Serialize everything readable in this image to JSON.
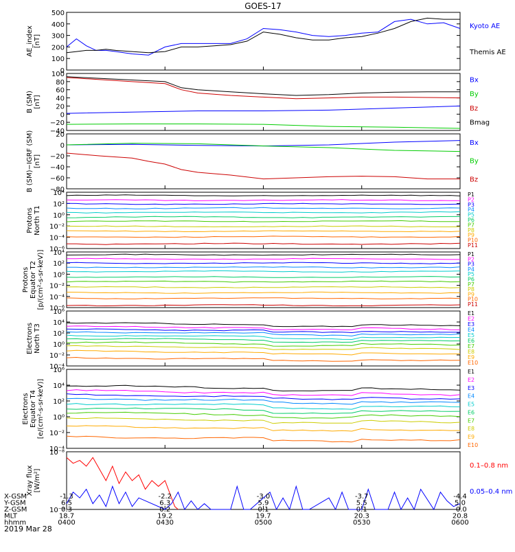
{
  "title": "GOES-17",
  "colors": {
    "frame": "#000000",
    "channels": [
      "#000000",
      "#ff00ff",
      "#0000ff",
      "#0088ff",
      "#00cccc",
      "#00cc66",
      "#44cc00",
      "#cccc00",
      "#ffaa00",
      "#ff6600",
      "#cc0000"
    ],
    "kyoto": "#0000ff",
    "themis": "#000000",
    "bx": "#0000ff",
    "by": "#00cc00",
    "bz": "#cc0000",
    "bmag": "#000000",
    "xray_long": "#ff0000",
    "xray_short": "#0000ff"
  },
  "chart_data": {
    "type": "line",
    "title": "GOES-17",
    "x_range_hhmm": [
      "0400",
      "0600"
    ],
    "panels": [
      {
        "id": "ae",
        "ylabel": "AE_index\n[nT]",
        "ylim": [
          0,
          500
        ],
        "yticks": [
          "0",
          "100",
          "200",
          "300",
          "400",
          "500"
        ],
        "legend": [
          {
            "name": "Kyoto AE",
            "color": "#0000ff"
          },
          {
            "name": "Themis AE",
            "color": "#000000"
          }
        ],
        "series": [
          {
            "name": "Kyoto AE",
            "color": "#0000ff",
            "x": [
              0,
              3,
              6,
              9,
              12,
              15,
              20,
              25,
              30,
              35,
              40,
              45,
              50,
              55,
              60,
              65,
              70,
              75,
              80,
              85,
              90,
              95,
              100,
              105,
              110,
              115,
              120
            ],
            "y": [
              200,
              270,
              210,
              170,
              170,
              160,
              140,
              130,
              200,
              230,
              230,
              230,
              230,
              270,
              360,
              350,
              330,
              300,
              290,
              300,
              320,
              330,
              420,
              440,
              400,
              410,
              360
            ]
          },
          {
            "name": "Themis AE",
            "color": "#000000",
            "x": [
              0,
              3,
              6,
              9,
              12,
              15,
              20,
              25,
              30,
              35,
              40,
              45,
              50,
              55,
              60,
              65,
              70,
              75,
              80,
              85,
              90,
              95,
              100,
              105,
              110,
              115,
              120
            ],
            "y": [
              150,
              160,
              170,
              170,
              180,
              170,
              160,
              150,
              160,
              200,
              200,
              210,
              220,
              250,
              330,
              310,
              280,
              260,
              260,
              280,
              290,
              320,
              360,
              420,
              450,
              440,
              440
            ]
          }
        ]
      },
      {
        "id": "bsm",
        "ylabel": "B (SM)\n[nT]",
        "ylim": [
          -40,
          100
        ],
        "yticks": [
          "−40",
          "−20",
          "0",
          "20",
          "40",
          "60",
          "80",
          "100"
        ],
        "legend": [
          {
            "name": "Bx",
            "color": "#0000ff"
          },
          {
            "name": "By",
            "color": "#00cc00"
          },
          {
            "name": "Bz",
            "color": "#cc0000"
          },
          {
            "name": "Bmag",
            "color": "#000000"
          }
        ],
        "series": [
          {
            "name": "Bmag",
            "color": "#000000",
            "x": [
              0,
              10,
              20,
              30,
              35,
              40,
              50,
              60,
              70,
              80,
              90,
              100,
              110,
              120
            ],
            "y": [
              92,
              88,
              84,
              80,
              65,
              60,
              55,
              50,
              46,
              48,
              52,
              54,
              55,
              55
            ]
          },
          {
            "name": "Bz",
            "color": "#cc0000",
            "x": [
              0,
              10,
              20,
              30,
              35,
              40,
              50,
              60,
              70,
              80,
              90,
              100,
              110,
              120
            ],
            "y": [
              90,
              85,
              80,
              75,
              60,
              52,
              46,
              42,
              38,
              40,
              42,
              42,
              41,
              40
            ]
          },
          {
            "name": "Bx",
            "color": "#0000ff",
            "x": [
              0,
              20,
              40,
              60,
              80,
              100,
              120
            ],
            "y": [
              2,
              5,
              8,
              8,
              10,
              15,
              20
            ]
          },
          {
            "name": "By",
            "color": "#00cc00",
            "x": [
              0,
              20,
              40,
              60,
              80,
              100,
              120
            ],
            "y": [
              -25,
              -24,
              -24,
              -25,
              -30,
              -32,
              -35
            ]
          }
        ]
      },
      {
        "id": "bigrf",
        "ylabel": "B (SM)−IGRF (SM)\n[nT]",
        "ylim": [
          -80,
          20
        ],
        "yticks": [
          "−80",
          "−60",
          "−40",
          "−20",
          "0",
          "20"
        ],
        "legend": [
          {
            "name": "Bx",
            "color": "#0000ff"
          },
          {
            "name": "By",
            "color": "#00cc00"
          },
          {
            "name": "Bz",
            "color": "#cc0000"
          }
        ],
        "series": [
          {
            "name": "Bx",
            "color": "#0000ff",
            "x": [
              0,
              20,
              40,
              60,
              80,
              100,
              120
            ],
            "y": [
              0,
              1,
              -1,
              -2,
              0,
              5,
              8
            ]
          },
          {
            "name": "By",
            "color": "#00cc00",
            "x": [
              0,
              20,
              40,
              60,
              80,
              100,
              120
            ],
            "y": [
              0,
              3,
              2,
              -2,
              -5,
              -10,
              -12
            ]
          },
          {
            "name": "Bz",
            "color": "#cc0000",
            "x": [
              0,
              10,
              20,
              25,
              30,
              35,
              40,
              50,
              60,
              70,
              80,
              90,
              100,
              110,
              120
            ],
            "y": [
              -15,
              -20,
              -24,
              -30,
              -35,
              -45,
              -50,
              -55,
              -62,
              -60,
              -58,
              -57,
              -58,
              -62,
              -62
            ]
          }
        ]
      },
      {
        "id": "protons_t1",
        "ylabel": "Protons\nNorth T1",
        "log": true,
        "ylim_exp": [
          -7,
          5
        ],
        "yticks": [
          "10⁻⁶",
          "10⁻⁴",
          "10⁻²",
          "10⁰",
          "10²",
          "10⁴"
        ],
        "legend": [
          "P1",
          "P2",
          "P3",
          "P4",
          "P5",
          "P6",
          "P7",
          "P8",
          "P9",
          "P10",
          "P11"
        ],
        "levels_exp": [
          4.3,
          3.3,
          2.5,
          1.6,
          0.7,
          -0.3,
          -1.2,
          -2.3,
          -3.3,
          -4.5,
          -6.0
        ]
      },
      {
        "id": "protons_t2",
        "ylabel": "Protons\nEquator T2\n[p/(cm²-s-sr-keV)]",
        "log": true,
        "ylim_exp": [
          -7,
          5
        ],
        "yticks": [
          "10⁻⁶",
          "10⁻⁴",
          "10⁻²",
          "10⁰",
          "10²",
          "10⁴"
        ],
        "legend": [
          "P1",
          "P2",
          "P3",
          "P4",
          "P5",
          "P6",
          "P7",
          "P8",
          "P9",
          "P10",
          "P11"
        ],
        "levels_exp": [
          4.4,
          3.5,
          2.6,
          1.7,
          0.8,
          -0.4,
          -1.4,
          -2.6,
          -3.8,
          -5.0,
          -6.5
        ]
      },
      {
        "id": "electrons_t3",
        "ylabel": "Electrons\nNorth T3",
        "log": true,
        "ylim_exp": [
          -4,
          6
        ],
        "yticks": [
          "10⁻⁴",
          "10⁻²",
          "10⁰",
          "10²",
          "10⁴",
          "10⁶"
        ],
        "legend": [
          "E1",
          "E2",
          "E3",
          "E4",
          "E5",
          "E6",
          "E7",
          "E8",
          "E9",
          "E10"
        ],
        "levels_exp": [
          3.8,
          3.2,
          2.7,
          2.2,
          1.6,
          1.0,
          0.3,
          -0.4,
          -1.3,
          -2.5
        ]
      },
      {
        "id": "electrons_t4",
        "ylabel": "Electrons\nEquator T4\n[e/(cm²-s-sr-keV)]",
        "log": true,
        "ylim_exp": [
          -4,
          6
        ],
        "yticks": [
          "10⁻⁴",
          "10⁻²",
          "10⁰",
          "10²",
          "10⁴",
          "10⁶"
        ],
        "legend": [
          "E1",
          "E2",
          "E3",
          "E4",
          "E5",
          "E6",
          "E7",
          "E8",
          "E9",
          "E10"
        ],
        "levels_exp": [
          3.9,
          3.3,
          2.8,
          2.3,
          1.7,
          1.1,
          0.5,
          -0.2,
          -1.2,
          -2.5
        ]
      },
      {
        "id": "xray",
        "ylabel": "Xray flux\n[W/m²]",
        "log": true,
        "ylim_exp": [
          -9,
          -8
        ],
        "yticks": [
          "10⁻⁹",
          "10⁻⁸"
        ],
        "legend": [
          {
            "name": "0.1–0.8 nm",
            "color": "#ff0000"
          },
          {
            "name": "0.05–0.4 nm",
            "color": "#0000ff"
          }
        ],
        "series": [
          {
            "name": "0.1–0.8 nm",
            "color": "#ff0000",
            "x": [
              0,
              2,
              4,
              6,
              8,
              10,
              12,
              14,
              16,
              18,
              20,
              22,
              24,
              26,
              28,
              30,
              32,
              33,
              34
            ],
            "y": [
              0.9,
              0.8,
              0.85,
              0.75,
              0.9,
              0.7,
              0.5,
              0.75,
              0.45,
              0.65,
              0.5,
              0.6,
              0.35,
              0.5,
              0.4,
              0.5,
              0.2,
              0.05,
              0.0
            ]
          },
          {
            "name": "0.05–0.4 nm",
            "color": "#0000ff",
            "x": [
              0,
              2,
              4,
              6,
              8,
              10,
              12,
              14,
              16,
              18,
              20,
              22,
              30,
              32,
              34,
              36,
              38,
              40,
              42,
              44,
              50,
              52,
              54,
              56,
              62,
              64,
              66,
              68,
              70,
              72,
              74,
              80,
              82,
              84,
              86,
              90,
              92,
              94,
              98,
              100,
              102,
              104,
              106,
              108,
              112,
              114,
              116,
              118,
              120
            ],
            "y": [
              0.1,
              0.3,
              0.2,
              0.35,
              0.1,
              0.25,
              0.05,
              0.4,
              0.1,
              0.3,
              0.05,
              0.2,
              0.0,
              0.1,
              0.3,
              0.0,
              0.15,
              0.0,
              0.1,
              0.0,
              0.0,
              0.4,
              0.0,
              0.0,
              0.3,
              0.0,
              0.2,
              0.0,
              0.4,
              0.0,
              0.0,
              0.2,
              0.0,
              0.3,
              0.0,
              0.0,
              0.35,
              0.0,
              0.0,
              0.3,
              0.0,
              0.2,
              0.0,
              0.35,
              0.0,
              0.3,
              0.15,
              0.05,
              0.1
            ]
          }
        ]
      }
    ],
    "x_axis_rows": [
      {
        "label": "X-GSM",
        "values": [
          "-1.3",
          "-2.2",
          "-3.0",
          "-3.7",
          "-4.4"
        ]
      },
      {
        "label": "Y-GSM",
        "values": [
          "6.5",
          "6.3",
          "5.9",
          "5.5",
          "5.0"
        ]
      },
      {
        "label": "Z-GSM",
        "values": [
          "0.3",
          "0.2",
          "0.1",
          "0.1",
          "-0.0"
        ]
      },
      {
        "label": "MLT",
        "values": [
          "18.7",
          "19.2",
          "19.7",
          "20.3",
          "20.8"
        ]
      },
      {
        "label": "hhmm",
        "values": [
          "0400",
          "0430",
          "0500",
          "0530",
          "0600"
        ]
      }
    ],
    "date": "2019 Mar 28"
  }
}
